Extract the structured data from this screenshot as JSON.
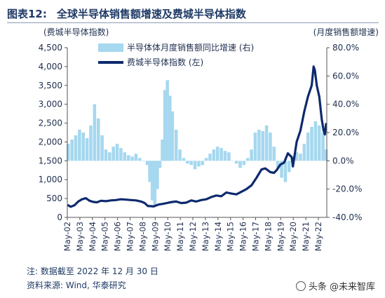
{
  "header": {
    "figure_no": "图表12:",
    "title": "全球半导体销售额增速及费城半导体指数"
  },
  "footer": {
    "note": "注: 数据截至 2022 年 12 月 30 日",
    "source": "资料来源: Wind, 华泰研究"
  },
  "watermark": {
    "text": "头条 @未来智库",
    "icon": "wechat-icon"
  },
  "colors": {
    "line": "#0d2a6e",
    "bars": "#a6d8ef",
    "axis_text": "#1f2f4f"
  },
  "chart_data": {
    "type": "bar+line",
    "left_axis": {
      "label": "(费城半导体指数)",
      "range": [
        0,
        4500
      ],
      "ticks": [
        "0",
        "500",
        "1,000",
        "1,500",
        "2,000",
        "2,500",
        "3,000",
        "3,500",
        "4,000",
        "4,500"
      ]
    },
    "right_axis": {
      "label": "(月度销售额增速)",
      "range": [
        -40,
        80
      ],
      "ticks": [
        "-40.0%",
        "-20.0%",
        "0.0%",
        "20.0%",
        "40.0%",
        "60.0%",
        "80.0%"
      ]
    },
    "x_axis": {
      "range": [
        2002.33,
        2023.0
      ],
      "ticks": [
        "May-02",
        "May-03",
        "May-04",
        "May-05",
        "May-06",
        "May-07",
        "May-08",
        "May-09",
        "May-10",
        "May-11",
        "May-12",
        "May-13",
        "May-14",
        "May-15",
        "May-16",
        "May-17",
        "May-18",
        "May-19",
        "May-20",
        "May-21",
        "May-22"
      ]
    },
    "legend": [
      "半导体体月度销售额同比增速 (右)",
      "费城半导体指数 (左)"
    ],
    "grid": false,
    "series": [
      {
        "name": "半导体体月度销售额同比增速 (右)",
        "type": "bar",
        "axis": "right",
        "x": [
          2002.4,
          2002.7,
          2003.0,
          2003.3,
          2003.6,
          2003.9,
          2004.2,
          2004.5,
          2004.8,
          2005.1,
          2005.4,
          2005.7,
          2006.0,
          2006.3,
          2006.6,
          2006.9,
          2007.2,
          2007.5,
          2007.8,
          2008.1,
          2008.4,
          2008.7,
          2008.9,
          2009.1,
          2009.3,
          2009.5,
          2009.7,
          2009.9,
          2010.1,
          2010.3,
          2010.5,
          2010.7,
          2011.0,
          2011.3,
          2011.6,
          2011.9,
          2012.2,
          2012.5,
          2012.8,
          2013.1,
          2013.4,
          2013.7,
          2014.0,
          2014.3,
          2014.6,
          2014.9,
          2015.2,
          2015.5,
          2015.8,
          2016.1,
          2016.4,
          2016.7,
          2017.0,
          2017.3,
          2017.6,
          2017.9,
          2018.2,
          2018.5,
          2018.8,
          2019.1,
          2019.4,
          2019.7,
          2020.0,
          2020.3,
          2020.6,
          2020.9,
          2021.2,
          2021.5,
          2021.8,
          2022.1,
          2022.4,
          2022.7,
          2022.95
        ],
        "values": [
          12,
          15,
          18,
          22,
          20,
          16,
          25,
          40,
          30,
          18,
          8,
          6,
          10,
          12,
          9,
          6,
          4,
          3,
          5,
          2,
          0,
          -3,
          -15,
          -28,
          -32,
          -20,
          -5,
          15,
          50,
          57,
          46,
          35,
          22,
          8,
          2,
          -2,
          -3,
          -6,
          -4,
          -3,
          2,
          5,
          8,
          10,
          9,
          7,
          6,
          0,
          -2,
          -5,
          -3,
          2,
          8,
          20,
          22,
          21,
          25,
          20,
          10,
          -5,
          -12,
          -15,
          -8,
          3,
          6,
          5,
          12,
          20,
          24,
          28,
          25,
          20,
          8
        ]
      },
      {
        "name": "费城半导体指数 (左)",
        "type": "line",
        "axis": "left",
        "x": [
          2002.35,
          2002.6,
          2002.9,
          2003.2,
          2003.5,
          2003.8,
          2004.1,
          2004.4,
          2004.7,
          2005.0,
          2005.4,
          2005.8,
          2006.2,
          2006.6,
          2007.0,
          2007.4,
          2007.8,
          2008.2,
          2008.5,
          2008.75,
          2008.9,
          2009.2,
          2009.6,
          2010.0,
          2010.4,
          2010.7,
          2011.0,
          2011.4,
          2011.8,
          2012.2,
          2012.6,
          2013.0,
          2013.4,
          2013.8,
          2014.2,
          2014.6,
          2015.0,
          2015.4,
          2015.8,
          2016.2,
          2016.6,
          2017.0,
          2017.4,
          2017.8,
          2018.1,
          2018.5,
          2018.8,
          2019.0,
          2019.3,
          2019.6,
          2019.9,
          2020.2,
          2020.3,
          2020.6,
          2020.9,
          2021.2,
          2021.5,
          2021.8,
          2021.95,
          2022.05,
          2022.2,
          2022.4,
          2022.6,
          2022.75,
          2022.85,
          2022.95
        ],
        "values": [
          330,
          280,
          320,
          420,
          480,
          510,
          440,
          410,
          400,
          440,
          430,
          450,
          460,
          480,
          470,
          460,
          450,
          420,
          380,
          300,
          300,
          290,
          340,
          360,
          390,
          410,
          420,
          380,
          390,
          450,
          420,
          460,
          480,
          540,
          580,
          560,
          660,
          630,
          610,
          680,
          750,
          850,
          1050,
          1270,
          1300,
          1200,
          1180,
          1250,
          1400,
          1450,
          1700,
          1600,
          1350,
          2000,
          2300,
          2800,
          3200,
          3500,
          4000,
          3900,
          3500,
          3200,
          2600,
          2300,
          2200,
          2500
        ]
      }
    ]
  }
}
